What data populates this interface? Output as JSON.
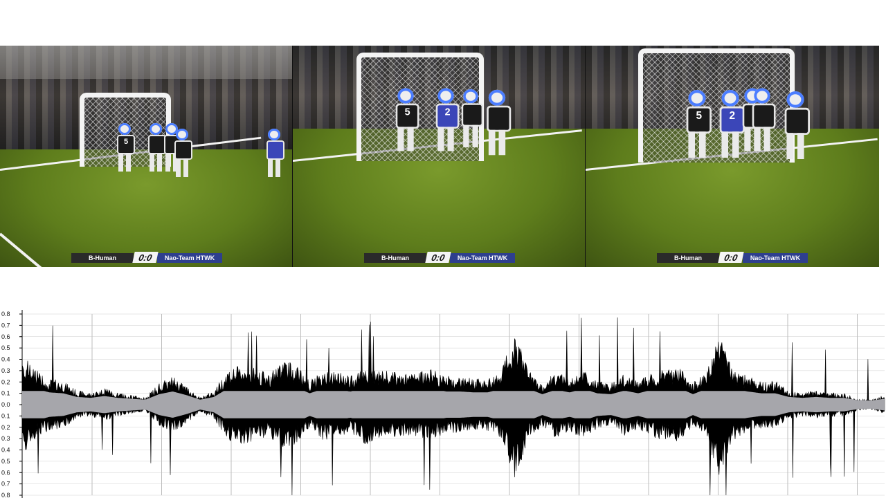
{
  "scoreboard": {
    "team_home": "B-Human",
    "score": "0:0",
    "team_away": "Nao-Team HTWK"
  },
  "frames": [
    {
      "robots": [
        {
          "number": "5",
          "kit": "black"
        },
        {
          "number": "",
          "kit": "black"
        },
        {
          "number": "",
          "kit": "black"
        },
        {
          "number": "",
          "kit": "black"
        },
        {
          "number": "",
          "kit": "blue"
        }
      ]
    },
    {
      "robots": [
        {
          "number": "5",
          "kit": "black"
        },
        {
          "number": "2",
          "kit": "blue"
        },
        {
          "number": "",
          "kit": "black"
        },
        {
          "number": "",
          "kit": "black"
        }
      ]
    },
    {
      "robots": [
        {
          "number": "5",
          "kit": "black"
        },
        {
          "number": "2",
          "kit": "blue"
        },
        {
          "number": "",
          "kit": "black"
        },
        {
          "number": "",
          "kit": "black"
        },
        {
          "number": "",
          "kit": "black"
        }
      ]
    }
  ],
  "waveform": {
    "y_ticks": [
      "0.8",
      "0.7",
      "0.6",
      "0.5",
      "0.4",
      "0.3",
      "0.2",
      "0.1",
      "0.0",
      "0.1",
      "0.2",
      "0.3",
      "0.4",
      "0.5",
      "0.6",
      "0.7",
      "0.8"
    ],
    "ylim": [
      -0.8,
      0.8
    ],
    "envelope": [
      0.42,
      0.3,
      0.22,
      0.2,
      0.12,
      0.1,
      0.14,
      0.1,
      0.08,
      0.06,
      0.18,
      0.24,
      0.16,
      0.06,
      0.12,
      0.3,
      0.33,
      0.32,
      0.26,
      0.38,
      0.34,
      0.2,
      0.3,
      0.28,
      0.24,
      0.34,
      0.3,
      0.28,
      0.26,
      0.28,
      0.3,
      0.24,
      0.24,
      0.22,
      0.22,
      0.3,
      0.62,
      0.3,
      0.18,
      0.28,
      0.22,
      0.3,
      0.2,
      0.18,
      0.26,
      0.2,
      0.28,
      0.3,
      0.32,
      0.18,
      0.3,
      0.62,
      0.3,
      0.24,
      0.2,
      0.2,
      0.12,
      0.1,
      0.12,
      0.1,
      0.1,
      0.05,
      0.04,
      0.08
    ],
    "waveform_color": "#000000",
    "rms_color": "#a6a6ab",
    "grid_color": "#cfcfcf"
  }
}
